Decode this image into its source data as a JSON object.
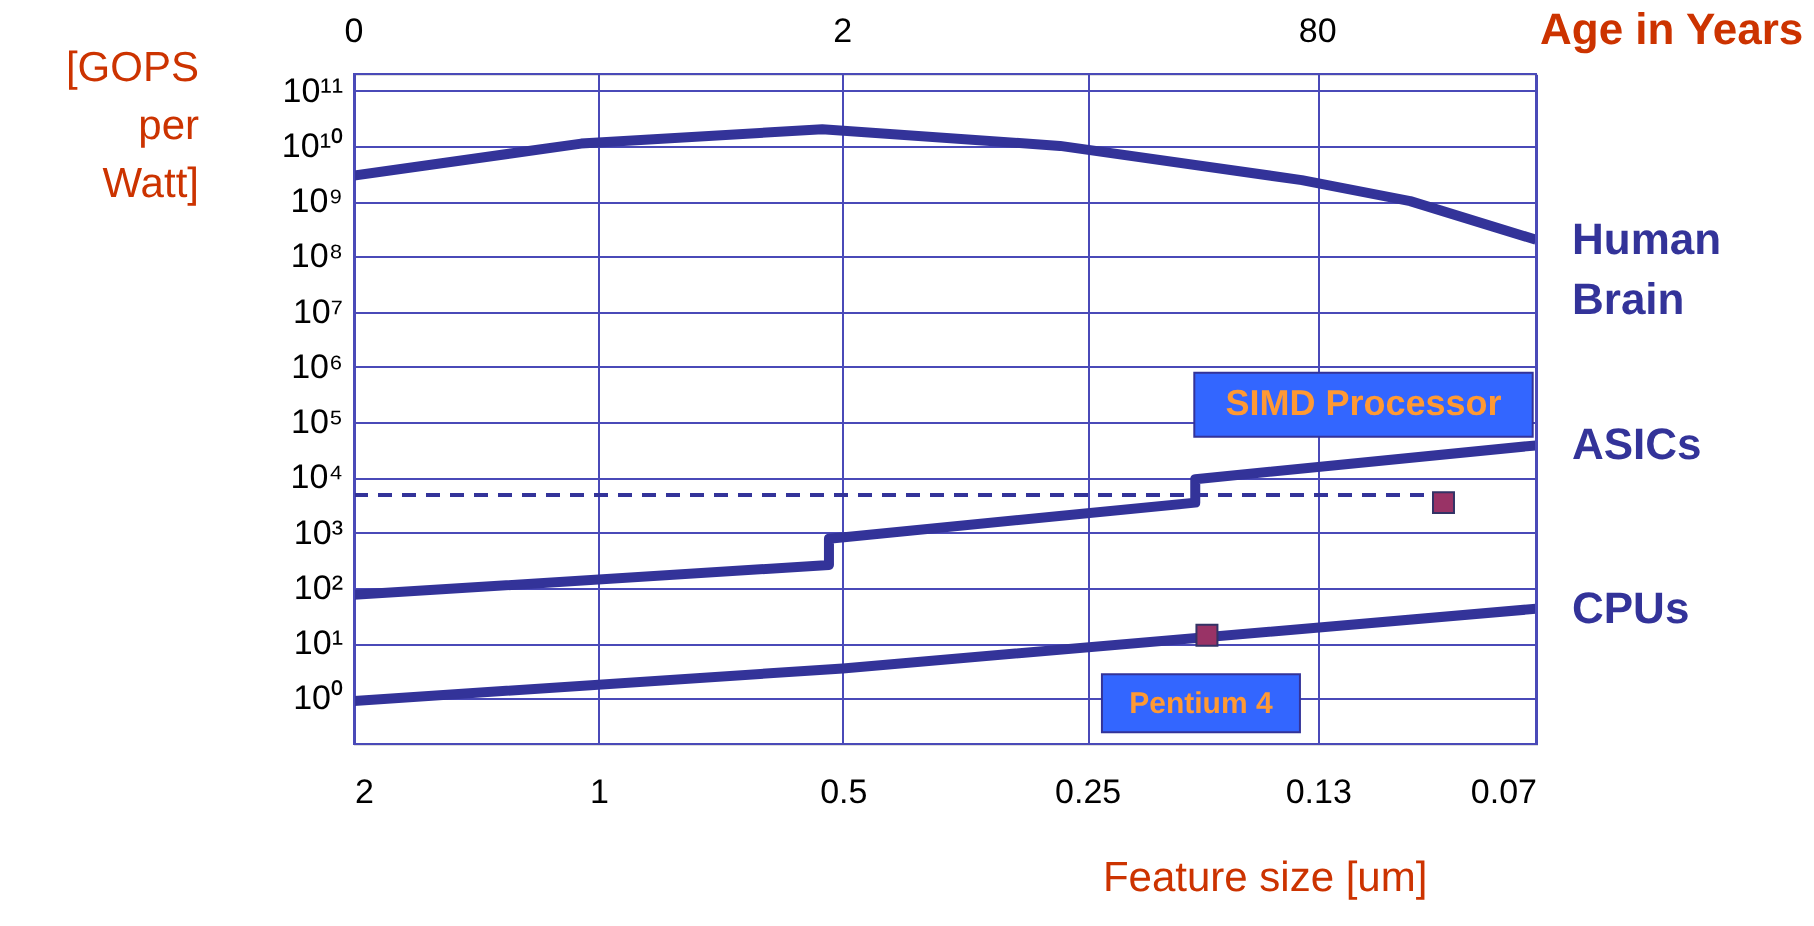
{
  "chart_data": {
    "type": "line",
    "xlabel": "Feature size [um]",
    "ylabel": "[GOPS per Watt]",
    "x2label": "Age in Years",
    "log": "xy",
    "grid": true,
    "legend": false,
    "xlim": [
      2,
      0.07
    ],
    "xticks": [
      2,
      1,
      0.5,
      0.25,
      0.13,
      0.07
    ],
    "ylim": [
      0.15,
      200000000000
    ],
    "yticks": [
      {
        "value": 1,
        "label": "10⁰"
      },
      {
        "value": 10,
        "label": "10¹"
      },
      {
        "value": 100,
        "label": "10²"
      },
      {
        "value": 1000,
        "label": "10³"
      },
      {
        "value": 10000,
        "label": "10⁴"
      },
      {
        "value": 100000,
        "label": "10⁵"
      },
      {
        "value": 1000000,
        "label": "10⁶"
      },
      {
        "value": 10000000,
        "label": "10⁷"
      },
      {
        "value": 100000000,
        "label": "10⁸"
      },
      {
        "value": 1000000000,
        "label": "10⁹"
      },
      {
        "value": 10000000000,
        "label": "10¹⁰"
      },
      {
        "value": 100000000000,
        "label": "10¹¹"
      }
    ],
    "series": [
      {
        "name": "Human Brain",
        "color": "#333399",
        "x": [
          2,
          1.05,
          0.53,
          0.27,
          0.136,
          0.1,
          0.07
        ],
        "values": [
          2900000000,
          11000000000,
          20000000000,
          10000000000,
          2400000000,
          1000000000,
          200000000
        ]
      },
      {
        "name": "ASICs",
        "color": "#333399",
        "x": [
          2,
          0.52,
          0.52,
          0.184,
          0.184,
          0.07
        ],
        "values": [
          75,
          260,
          780,
          3500,
          9300,
          38000
        ]
      },
      {
        "name": "CPUs",
        "color": "#333399",
        "x": [
          2,
          0.5,
          0.07
        ],
        "values": [
          0.9,
          3.5,
          42
        ]
      },
      {
        "line_style": "dashed",
        "color": "#333399",
        "x": [
          2,
          0.094
        ],
        "values": [
          4800,
          4800
        ]
      },
      {
        "type": "scatter",
        "marker": "square",
        "color": "#993366",
        "x": [
          0.091,
          0.178
        ],
        "values": [
          3500,
          14
        ]
      }
    ],
    "annotations": [
      "0",
      "2",
      "80",
      {
        "text": "SIMD Processor",
        "x": 0.091,
        "y": 3500
      },
      {
        "text": "Pentium 4",
        "x": 0.178,
        "y": 14
      }
    ]
  }
}
